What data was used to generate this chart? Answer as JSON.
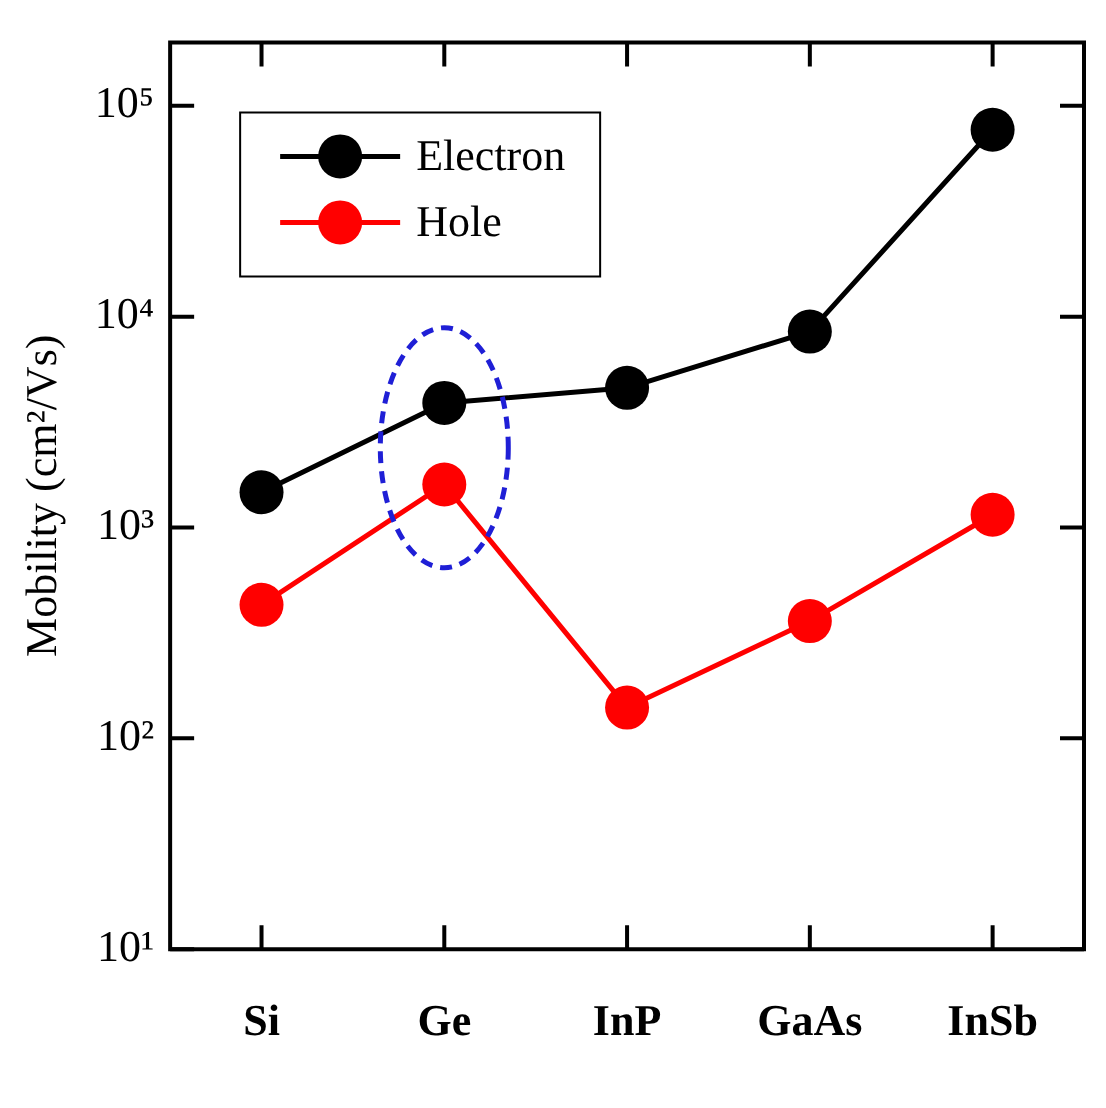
{
  "chart_data": {
    "type": "line",
    "ylabel": "Mobility (cm²/Vs)",
    "categories": [
      "Si",
      "Ge",
      "InP",
      "GaAs",
      "InSb"
    ],
    "series": [
      {
        "name": "Electron",
        "color": "#000000",
        "values": [
          1470,
          3900,
          4600,
          8500,
          77000
        ]
      },
      {
        "name": "Hole",
        "color": "#ff0000",
        "values": [
          430,
          1600,
          140,
          360,
          1150
        ]
      }
    ],
    "log": "y",
    "ylim": [
      10,
      200000
    ],
    "yticks": [
      {
        "value": 10,
        "label": "10¹"
      },
      {
        "value": 100,
        "label": "10²"
      },
      {
        "value": 1000,
        "label": "10³"
      },
      {
        "value": 10000,
        "label": "10⁴"
      },
      {
        "value": 100000,
        "label": "10⁵"
      }
    ],
    "grid": false,
    "legend": "top left",
    "marker": "circle",
    "line_style": "solid"
  }
}
